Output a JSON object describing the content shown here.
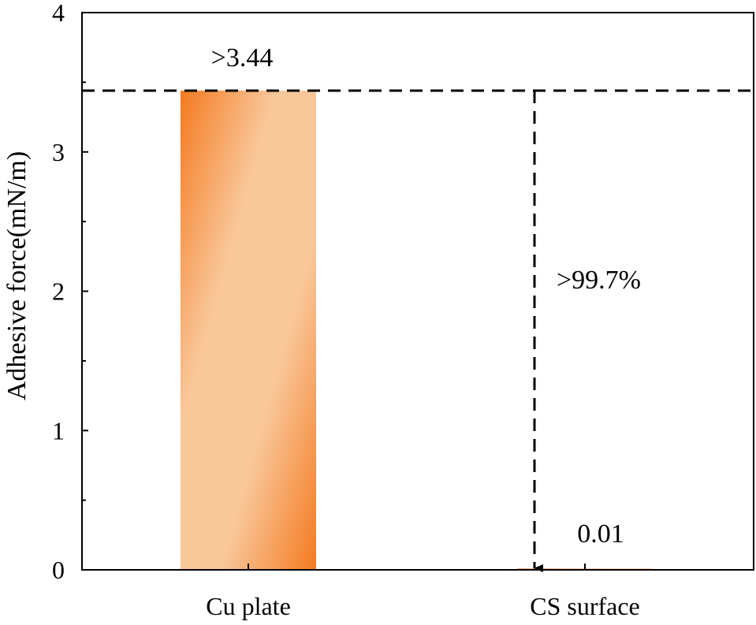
{
  "chart_data": {
    "type": "bar",
    "title": "",
    "xlabel": "",
    "ylabel": "Adhesive force(mN/m)",
    "ylim": [
      0,
      4
    ],
    "yticks": [
      "0",
      "1",
      "2",
      "3",
      "4"
    ],
    "categories": [
      "Cu plate",
      "CS surface"
    ],
    "values": [
      3.44,
      0.01
    ],
    "data_labels": [
      ">3.44",
      "0.01"
    ],
    "reference_line": 3.44,
    "reduction_annotation": ">99.7%",
    "grid": false,
    "colors": {
      "bar_dark": "#F47A20",
      "bar_light": "#F9C79A",
      "axis": "#000000"
    }
  }
}
